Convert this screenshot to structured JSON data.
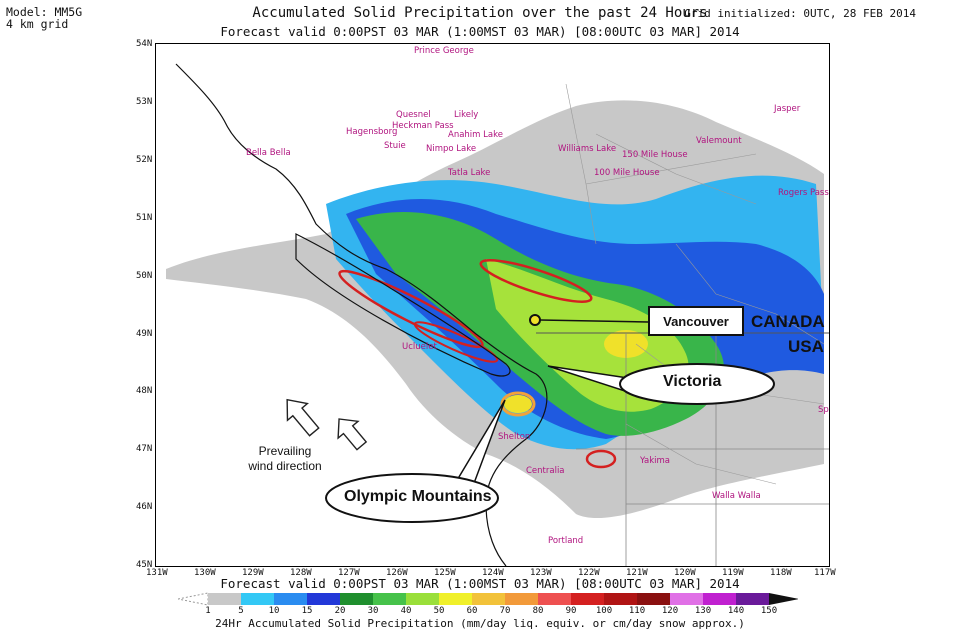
{
  "header": {
    "model": "Model: MM5G",
    "grid": "4 km grid",
    "title": "Accumulated Solid Precipitation over the past 24 Hours",
    "grid_initialized": "Grid initialized: 0UTC, 28 FEB 2014",
    "forecast_valid": "Forecast valid 0:00PST 03 MAR (1:00MST 03 MAR) [08:00UTC 03 MAR] 2014"
  },
  "map": {
    "lat_ticks": [
      "54N",
      "53N",
      "52N",
      "51N",
      "50N",
      "49N",
      "48N",
      "47N",
      "46N",
      "45N"
    ],
    "lon_ticks": [
      "131W",
      "130W",
      "129W",
      "128W",
      "127W",
      "126W",
      "125W",
      "124W",
      "123W",
      "122W",
      "121W",
      "120W",
      "119W",
      "118W",
      "117W"
    ],
    "cities": [
      "Prince George",
      "Quesnel",
      "Likely",
      "Jasper",
      "Heckman Pass",
      "Hagensborg",
      "Anahim Lake",
      "Stuie",
      "Nimpo Lake",
      "Bella Bella",
      "Williams Lake",
      "150 Mile House",
      "Valemount",
      "100 Mile House",
      "Tatla Lake",
      "Rogers Pass",
      "Portland",
      "Spokane",
      "Walla Walla",
      "Ucluelet",
      "Centralia",
      "Yakima",
      "Shelton"
    ],
    "colors": {
      "grey": "#c8c8c8",
      "light_blue": "#33b4f0",
      "blue": "#1f5ae0",
      "green": "#39b54a",
      "lime": "#a6e23b",
      "yellow": "#f0e12a",
      "orange": "#f2a23a",
      "red": "#d42020",
      "city_pink": "#b0147f"
    }
  },
  "annotations": {
    "vancouver": "Vancouver",
    "canada": "CANADA",
    "usa": "USA",
    "victoria": "Victoria",
    "olympic": "Olympic Mountains",
    "wind_line1": "Prevailing",
    "wind_line2": "wind direction"
  },
  "footer": {
    "forecast_valid": "Forecast valid 0:00PST 03 MAR (1:00MST 03 MAR) [08:00UTC 03 MAR] 2014",
    "colorbar_labels": [
      "1",
      "5",
      "10",
      "15",
      "20",
      "30",
      "40",
      "50",
      "60",
      "70",
      "80",
      "90",
      "100",
      "110",
      "120",
      "130",
      "140",
      "150"
    ],
    "colorbar_colors": [
      "#ffffff",
      "#c8c8c8",
      "#33c8f5",
      "#2a8cf0",
      "#2238d8",
      "#1f8f2e",
      "#46c24a",
      "#9adf3a",
      "#f0f02a",
      "#f2c23a",
      "#f29a3a",
      "#ee5050",
      "#d42020",
      "#b01414",
      "#8a1010",
      "#e070e6",
      "#c020d0",
      "#6a1a9a",
      "#111111"
    ],
    "colorbar_title": "24Hr Accumulated Solid Precipitation (mm/day liq. equiv. or cm/day snow approx.)"
  }
}
